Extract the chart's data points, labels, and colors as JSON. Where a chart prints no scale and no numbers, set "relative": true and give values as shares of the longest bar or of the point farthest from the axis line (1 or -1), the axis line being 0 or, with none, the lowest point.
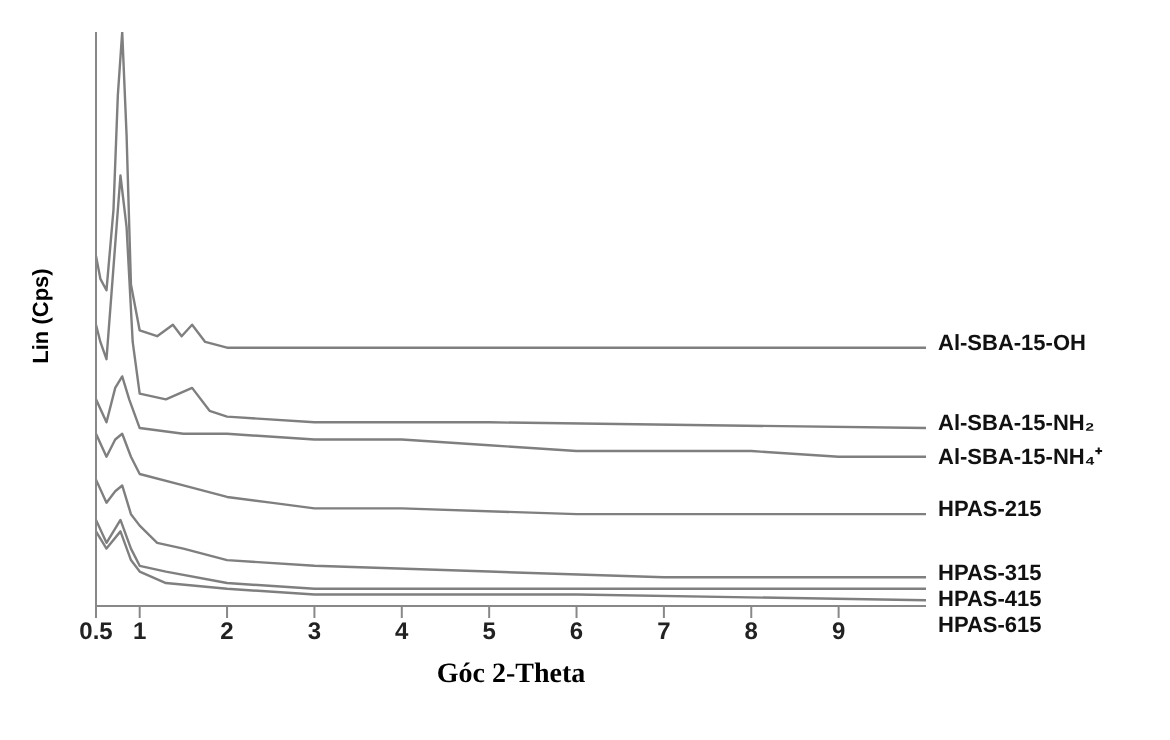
{
  "chart_data": {
    "type": "line",
    "xlabel": "Góc 2-Theta",
    "ylabel": "Lin (Cps)",
    "relative": true,
    "xlim": [
      0.5,
      10
    ],
    "xticks": [
      0.5,
      1,
      2,
      3,
      4,
      5,
      6,
      7,
      8,
      9
    ],
    "legend": false,
    "series": [
      {
        "name": "Al-SBA-15-OH",
        "color": "#7f7f7f",
        "x": [
          0.5,
          0.55,
          0.62,
          0.7,
          0.75,
          0.8,
          0.85,
          0.9,
          1.0,
          1.2,
          1.38,
          1.48,
          1.6,
          1.75,
          2,
          3,
          4,
          10
        ],
        "values": [
          0.61,
          0.57,
          0.55,
          0.69,
          0.89,
          1,
          0.82,
          0.56,
          0.48,
          0.47,
          0.49,
          0.47,
          0.49,
          0.46,
          0.45,
          0.45,
          0.45,
          0.45
        ]
      },
      {
        "name": "Al-SBA-15-NH₂",
        "color": "#7f7f7f",
        "x": [
          0.5,
          0.55,
          0.62,
          0.7,
          0.78,
          0.85,
          0.92,
          1.0,
          1.3,
          1.6,
          1.8,
          2,
          3,
          5,
          10
        ],
        "values": [
          0.49,
          0.46,
          0.43,
          0.59,
          0.75,
          0.66,
          0.46,
          0.37,
          0.36,
          0.38,
          0.34,
          0.33,
          0.32,
          0.32,
          0.31
        ]
      },
      {
        "name": "Al-SBA-15-NH₄⁺",
        "color": "#7f7f7f",
        "x": [
          0.5,
          0.62,
          0.72,
          0.8,
          0.88,
          1.0,
          1.5,
          2,
          3,
          4,
          5,
          6,
          7,
          8,
          9,
          10
        ],
        "values": [
          0.36,
          0.32,
          0.38,
          0.4,
          0.36,
          0.31,
          0.3,
          0.3,
          0.29,
          0.29,
          0.28,
          0.27,
          0.27,
          0.27,
          0.26,
          0.26
        ]
      },
      {
        "name": "HPAS-215",
        "color": "#7f7f7f",
        "x": [
          0.5,
          0.62,
          0.72,
          0.8,
          0.9,
          1.0,
          1.5,
          2,
          2.5,
          3,
          4,
          6,
          8,
          10
        ],
        "values": [
          0.3,
          0.26,
          0.29,
          0.3,
          0.26,
          0.23,
          0.21,
          0.19,
          0.18,
          0.17,
          0.17,
          0.16,
          0.16,
          0.16
        ]
      },
      {
        "name": "HPAS-315",
        "color": "#7f7f7f",
        "x": [
          0.5,
          0.62,
          0.72,
          0.8,
          0.9,
          1.0,
          1.2,
          1.5,
          2,
          3,
          5,
          7,
          10
        ],
        "values": [
          0.22,
          0.18,
          0.2,
          0.21,
          0.16,
          0.14,
          0.11,
          0.1,
          0.08,
          0.07,
          0.06,
          0.05,
          0.05
        ]
      },
      {
        "name": "HPAS-415",
        "color": "#7f7f7f",
        "x": [
          0.5,
          0.62,
          0.78,
          0.9,
          1.0,
          1.3,
          2,
          3,
          6,
          10
        ],
        "values": [
          0.15,
          0.11,
          0.15,
          0.1,
          0.07,
          0.06,
          0.04,
          0.03,
          0.03,
          0.03
        ]
      },
      {
        "name": "HPAS-615",
        "color": "#7f7f7f",
        "x": [
          0.5,
          0.62,
          0.78,
          0.9,
          1.0,
          1.3,
          2,
          3,
          6,
          10
        ],
        "values": [
          0.13,
          0.1,
          0.13,
          0.08,
          0.06,
          0.04,
          0.03,
          0.02,
          0.02,
          0.01
        ]
      }
    ]
  }
}
